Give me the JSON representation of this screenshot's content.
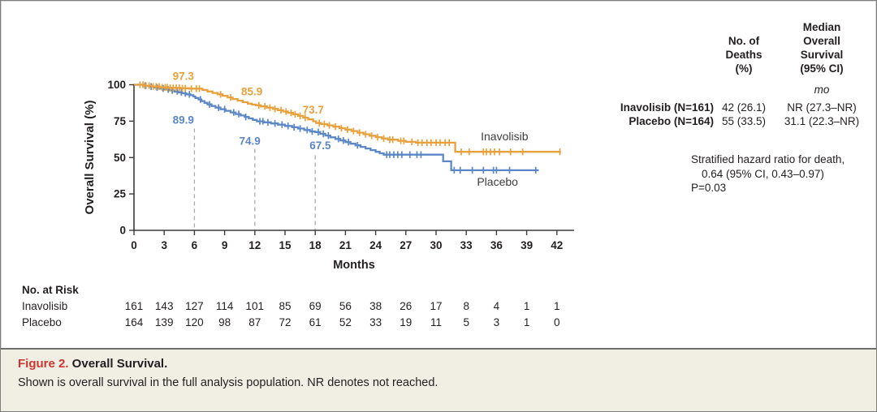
{
  "stats_panel": {
    "col1_header": [
      "No. of",
      "Deaths",
      "(%)"
    ],
    "col2_header": [
      "Median",
      "Overall",
      "Survival",
      "(95% CI)"
    ],
    "unit": "mo",
    "rows": [
      {
        "label": "Inavolisib (N=161)",
        "deaths": "42 (26.1)",
        "median": "NR (27.3–NR)"
      },
      {
        "label": "Placebo (N=164)",
        "deaths": "55 (33.5)",
        "median": "31.1 (22.3–NR)"
      }
    ],
    "hazard_line1": "Stratified hazard ratio for death,",
    "hazard_line2": "0.64 (95% CI, 0.43–0.97)",
    "hazard_line3": "P=0.03"
  },
  "caption": {
    "label": "Figure 2.",
    "title": " Overall Survival.",
    "body": "Shown is overall survival in the full analysis population. NR denotes not reached."
  },
  "chart_data": {
    "type": "line",
    "subtype": "kaplan-meier-step",
    "title": "",
    "xlabel": "Months",
    "ylabel": "Overall Survival (%)",
    "xlim": [
      0,
      43.5
    ],
    "ylim": [
      0,
      100
    ],
    "xticks": [
      0,
      3,
      6,
      9,
      12,
      15,
      18,
      21,
      24,
      27,
      30,
      33,
      36,
      39,
      42
    ],
    "yticks": [
      0,
      25,
      50,
      75,
      100
    ],
    "grid": false,
    "legend_position": "on-curve-labels",
    "axis_color": "#3c3c3c",
    "dashed_line_color": "#ababab",
    "reference_lines": [
      {
        "month": 6,
        "top_pct": 70
      },
      {
        "month": 12,
        "top_pct": 56
      },
      {
        "month": 18,
        "top_pct": 51.5
      }
    ],
    "series": [
      {
        "name": "Inavolisib",
        "color": "#e8a13c",
        "end_month": 42.4,
        "label_pos": {
          "month": 36.8,
          "pct": 64
        },
        "annotations": [
          {
            "text": "97.3",
            "month": 4.9,
            "pct": 105.5
          },
          {
            "text": "85.9",
            "month": 11.7,
            "pct": 95.0
          },
          {
            "text": "73.7",
            "month": 17.8,
            "pct": 82.5
          }
        ],
        "steps": [
          [
            0,
            100
          ],
          [
            1.0,
            99.4
          ],
          [
            1.8,
            98.8
          ],
          [
            2.6,
            98.2
          ],
          [
            3.4,
            97.9
          ],
          [
            4.6,
            97.6
          ],
          [
            5.5,
            97.3
          ],
          [
            6.8,
            96.4
          ],
          [
            7.3,
            95.4
          ],
          [
            7.8,
            94.4
          ],
          [
            8.3,
            93.4
          ],
          [
            8.8,
            92.4
          ],
          [
            9.3,
            91.3
          ],
          [
            9.8,
            90.2
          ],
          [
            10.3,
            89.1
          ],
          [
            10.8,
            88.0
          ],
          [
            11.3,
            87.0
          ],
          [
            11.7,
            86.4
          ],
          [
            12.1,
            85.9
          ],
          [
            12.6,
            85.1
          ],
          [
            13.2,
            84.3
          ],
          [
            13.8,
            83.4
          ],
          [
            14.3,
            82.5
          ],
          [
            14.8,
            81.6
          ],
          [
            15.3,
            80.7
          ],
          [
            15.8,
            79.7
          ],
          [
            16.3,
            78.6
          ],
          [
            16.8,
            77.4
          ],
          [
            17.3,
            76.2
          ],
          [
            17.8,
            74.9
          ],
          [
            18.1,
            73.7
          ],
          [
            18.6,
            73.0
          ],
          [
            19.2,
            72.1
          ],
          [
            19.8,
            71.2
          ],
          [
            20.4,
            70.2
          ],
          [
            21.0,
            69.2
          ],
          [
            21.6,
            68.2
          ],
          [
            22.2,
            67.1
          ],
          [
            22.8,
            66.0
          ],
          [
            23.4,
            65.0
          ],
          [
            24.0,
            64.0
          ],
          [
            24.6,
            63.1
          ],
          [
            25.2,
            62.3
          ],
          [
            26.2,
            61.5
          ],
          [
            27.0,
            60.8
          ],
          [
            28.0,
            60.2
          ],
          [
            31.9,
            53.9
          ]
        ],
        "censor_months": [
          0.6,
          0.9,
          1.2,
          1.5,
          1.9,
          2.2,
          2.5,
          2.8,
          3.1,
          3.3,
          3.6,
          3.9,
          4.2,
          4.5,
          4.8,
          5.1,
          5.7,
          6.2,
          6.5,
          8.6,
          9.6,
          12.4,
          13.0,
          13.5,
          14.0,
          14.6,
          15.1,
          15.6,
          16.0,
          16.5,
          17.0,
          18.4,
          18.9,
          19.4,
          20.0,
          20.6,
          21.2,
          21.8,
          22.4,
          23.0,
          23.6,
          24.2,
          24.8,
          25.4,
          25.7,
          26.5,
          26.8,
          27.6,
          28.2,
          28.6,
          29.1,
          29.5,
          30.0,
          30.4,
          30.9,
          31.3,
          32.5,
          33.3,
          34.7,
          35.0,
          35.4,
          35.8,
          36.3,
          37.4,
          38.6,
          42.3
        ]
      },
      {
        "name": "Placebo",
        "color": "#5c87c7",
        "end_month": 40.2,
        "label_pos": {
          "month": 36.1,
          "pct": 33.0
        },
        "annotations": [
          {
            "text": "89.9",
            "month": 4.9,
            "pct": 75.5
          },
          {
            "text": "74.9",
            "month": 11.5,
            "pct": 61.0
          },
          {
            "text": "67.5",
            "month": 18.5,
            "pct": 58.0
          }
        ],
        "steps": [
          [
            0,
            100
          ],
          [
            0.9,
            99.4
          ],
          [
            1.5,
            98.8
          ],
          [
            2.0,
            98.1
          ],
          [
            2.5,
            97.4
          ],
          [
            3.0,
            96.8
          ],
          [
            3.5,
            96.1
          ],
          [
            4.0,
            95.4
          ],
          [
            4.4,
            94.8
          ],
          [
            4.8,
            94.1
          ],
          [
            5.2,
            93.4
          ],
          [
            5.6,
            92.8
          ],
          [
            5.9,
            91.9
          ],
          [
            6.1,
            90.9
          ],
          [
            6.4,
            89.9
          ],
          [
            6.7,
            88.8
          ],
          [
            7.0,
            87.6
          ],
          [
            7.3,
            86.5
          ],
          [
            7.7,
            85.4
          ],
          [
            8.1,
            84.3
          ],
          [
            8.6,
            83.2
          ],
          [
            9.1,
            82.1
          ],
          [
            9.6,
            81.0
          ],
          [
            10.1,
            79.9
          ],
          [
            10.6,
            78.9
          ],
          [
            11.0,
            77.9
          ],
          [
            11.4,
            76.9
          ],
          [
            11.8,
            75.9
          ],
          [
            12.2,
            74.9
          ],
          [
            12.9,
            74.2
          ],
          [
            13.6,
            73.4
          ],
          [
            14.3,
            72.6
          ],
          [
            15.0,
            71.7
          ],
          [
            15.7,
            70.8
          ],
          [
            16.3,
            69.9
          ],
          [
            16.9,
            68.9
          ],
          [
            17.5,
            67.9
          ],
          [
            18.0,
            67.5
          ],
          [
            18.5,
            66.3
          ],
          [
            19.0,
            65.1
          ],
          [
            19.5,
            63.9
          ],
          [
            20.0,
            62.8
          ],
          [
            20.5,
            61.7
          ],
          [
            21.0,
            60.6
          ],
          [
            21.5,
            59.5
          ],
          [
            22.0,
            58.4
          ],
          [
            22.5,
            57.3
          ],
          [
            23.0,
            56.2
          ],
          [
            23.5,
            55.1
          ],
          [
            24.0,
            53.9
          ],
          [
            24.4,
            52.9
          ],
          [
            24.8,
            52.0
          ],
          [
            30.7,
            47.4
          ],
          [
            31.5,
            41.3
          ]
        ],
        "censor_months": [
          1.1,
          1.7,
          2.3,
          2.9,
          3.4,
          3.8,
          4.3,
          4.7,
          5.1,
          5.5,
          6.6,
          7.5,
          8.4,
          9.0,
          9.9,
          10.4,
          11.1,
          12.5,
          12.8,
          13.3,
          14.0,
          14.7,
          15.3,
          15.9,
          16.5,
          17.2,
          17.7,
          18.3,
          18.8,
          19.3,
          20.3,
          20.8,
          21.3,
          22.2,
          25.1,
          25.4,
          25.8,
          26.2,
          26.6,
          27.4,
          28.1,
          28.5,
          31.8,
          32.4,
          33.6,
          34.7,
          35.7,
          36.0,
          37.3,
          39.9
        ]
      }
    ],
    "at_risk": {
      "title": "No. at Risk",
      "months": [
        0,
        3,
        6,
        9,
        12,
        15,
        18,
        21,
        24,
        27,
        30,
        33,
        36,
        39,
        42
      ],
      "rows": [
        {
          "label": "Inavolisib",
          "values": [
            161,
            143,
            127,
            114,
            101,
            85,
            69,
            56,
            38,
            26,
            17,
            8,
            4,
            1,
            1
          ]
        },
        {
          "label": "Placebo",
          "values": [
            164,
            139,
            120,
            98,
            87,
            72,
            61,
            52,
            33,
            19,
            11,
            5,
            3,
            1,
            0
          ]
        }
      ]
    }
  }
}
